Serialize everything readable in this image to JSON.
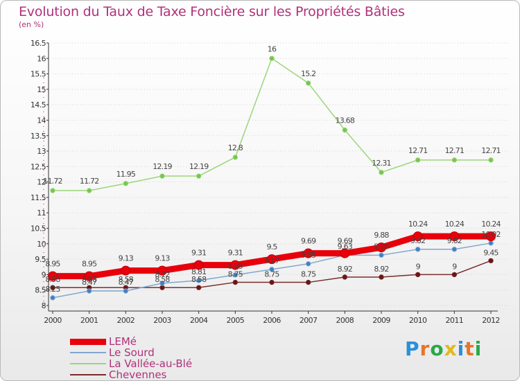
{
  "header": {
    "title": "Evolution du Taux de Taxe Foncière sur les Propriétés Bâties",
    "subtitle": "(en %)"
  },
  "brand": {
    "text": "Proxiti",
    "letter_colors": [
      "#2a8fd8",
      "#e8742a",
      "#2aa84a",
      "#e3b81c",
      "#2a8fd8",
      "#e8742a",
      "#2aa84a"
    ]
  },
  "colors": {
    "title": "#b0307a",
    "axis": "#333333",
    "grid_dots": "#d2d2d2"
  },
  "chart_data": {
    "type": "line",
    "title": "Evolution du Taux de Taxe Foncière sur les Propriétés Bâties",
    "ylabel": "(en %)",
    "xlabel": "",
    "x": [
      "2000",
      "2001",
      "2002",
      "2003",
      "2004",
      "2005",
      "2006",
      "2007",
      "2008",
      "2009",
      "2010",
      "2011",
      "2012"
    ],
    "ylim": [
      8,
      16.5
    ],
    "yticks": [
      "8",
      "8.5",
      "9",
      "9.5",
      "10",
      "10.5",
      "11",
      "11.5",
      "12",
      "12.5",
      "13",
      "13.5",
      "14",
      "14.5",
      "15",
      "15.5",
      "16",
      "16.5"
    ],
    "legend_position": "bottom-left",
    "series": [
      {
        "name": "LEMé",
        "color": "#e8000b",
        "marker_fill": "#e8000b",
        "width": 9,
        "values": [
          8.95,
          8.95,
          9.13,
          9.13,
          9.31,
          9.31,
          9.5,
          9.69,
          9.69,
          9.88,
          10.24,
          10.24,
          10.24
        ],
        "labels": [
          "8.95",
          "8.95",
          "9.13",
          "9.13",
          "9.31",
          "9.31",
          "9.5",
          "9.69",
          "9.69",
          "9.88",
          "10.24",
          "10.24",
          "10.24"
        ]
      },
      {
        "name": "Le Sourd",
        "color": "#7fa6cf",
        "marker_fill": "#3f7fc4",
        "width": 1.5,
        "values": [
          8.25,
          8.47,
          8.47,
          8.72,
          8.81,
          8.99,
          9.17,
          9.35,
          9.63,
          9.63,
          9.82,
          9.82,
          10.02
        ],
        "labels": [
          "8.25",
          "8.47",
          "8.47",
          "8.72",
          "8.81",
          "8.99",
          "9.17",
          "9.35",
          "9.63",
          "9.63",
          "9.82",
          "9.82",
          "10.02"
        ]
      },
      {
        "name": "La Vallée-au-Blé",
        "color": "#9ad67a",
        "marker_fill": "#74c64e",
        "width": 1.5,
        "values": [
          11.72,
          11.72,
          11.95,
          12.19,
          12.19,
          12.8,
          16,
          15.2,
          13.68,
          12.31,
          12.71,
          12.71,
          12.71
        ],
        "labels": [
          "11.72",
          "11.72",
          "11.95",
          "12.19",
          "12.19",
          "12.8",
          "16",
          "15.2",
          "13.68",
          "12.31",
          "12.71",
          "12.71",
          "12.71"
        ]
      },
      {
        "name": "Chevennes",
        "color": "#7a2b2b",
        "marker_fill": "#6a1414",
        "width": 1.5,
        "values": [
          8.58,
          8.58,
          8.58,
          8.58,
          8.58,
          8.75,
          8.75,
          8.75,
          8.92,
          8.92,
          9,
          9,
          9.45
        ],
        "labels": [
          "8.58",
          "8.58",
          "8.58",
          "8.58",
          "8.58",
          "8.75",
          "8.75",
          "8.75",
          "8.92",
          "8.92",
          "9",
          "9",
          "9.45"
        ]
      }
    ]
  }
}
